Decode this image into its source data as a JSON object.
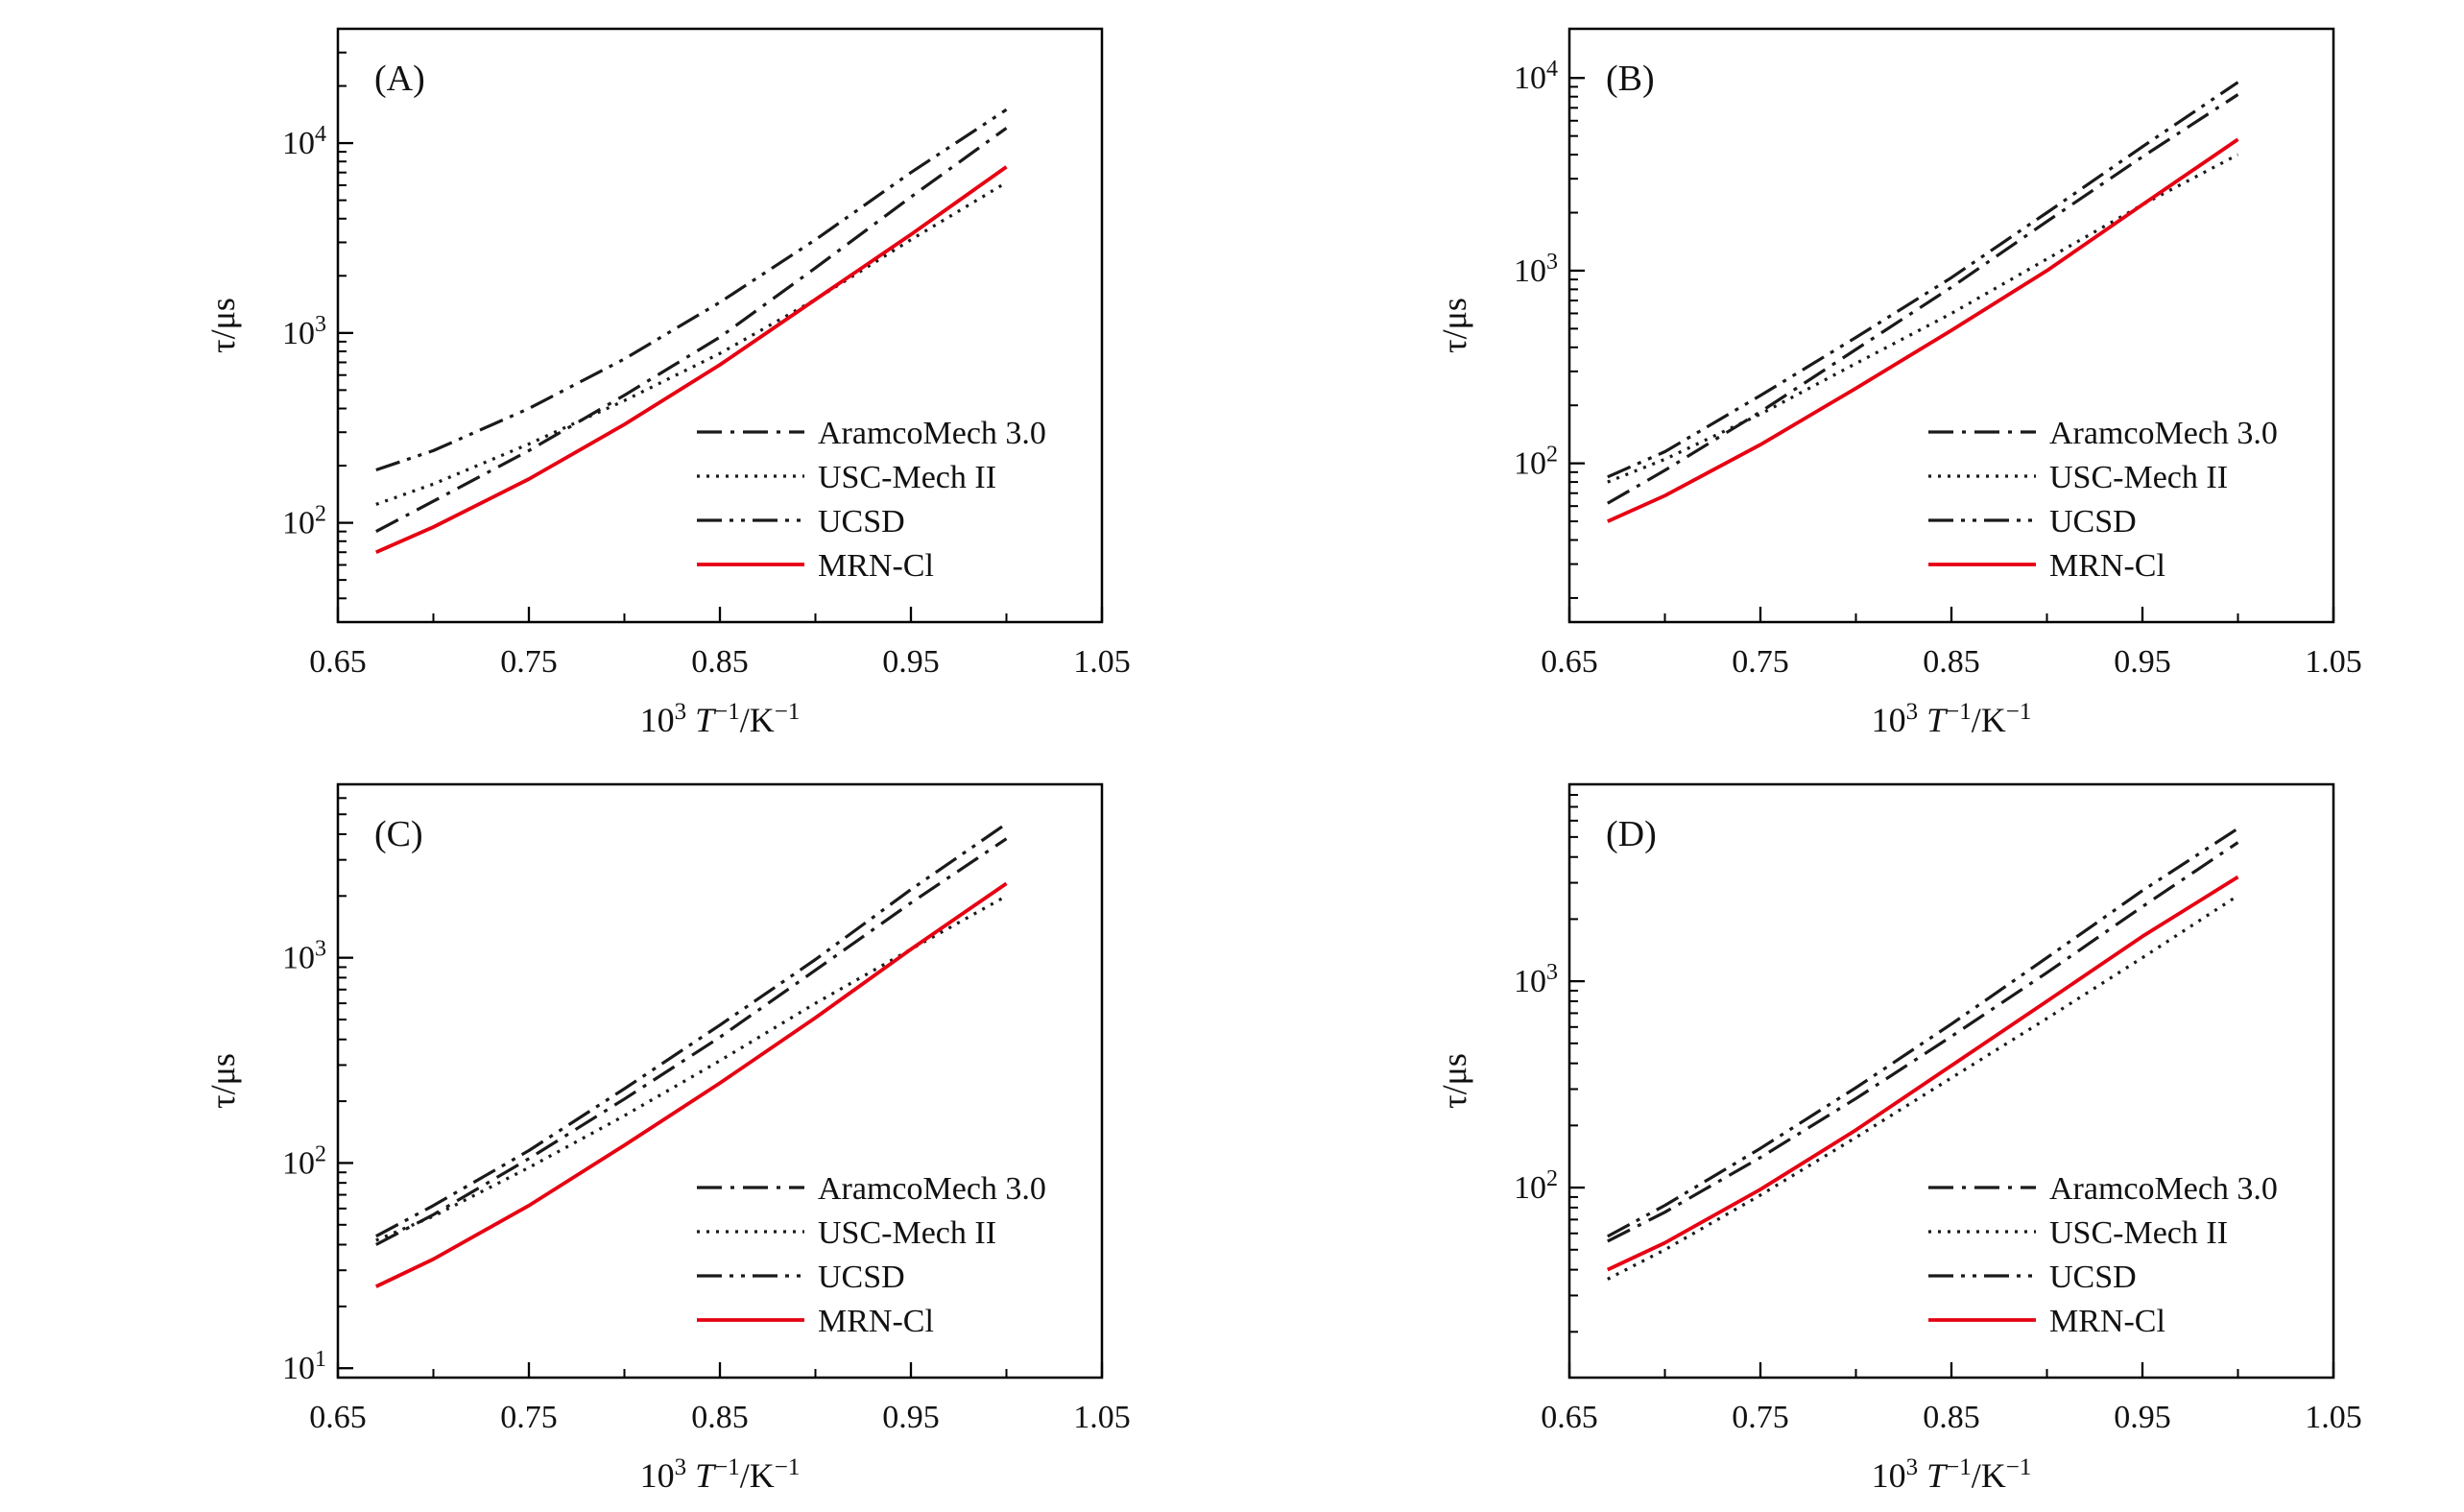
{
  "figure": {
    "background": "#ffffff",
    "black": "#1a1a1a",
    "red": "#e60012"
  },
  "chart_data": [
    {
      "type": "line",
      "yscale": "log",
      "panel_label": "(A)",
      "ylabel": "τ/μs",
      "xlabel_text": "10³ T⁻¹/K⁻¹",
      "xlabel_parts": [
        {
          "t": "10"
        },
        {
          "t": "3",
          "sup": true
        },
        {
          "t": " "
        },
        {
          "t": "T",
          "italic": true
        },
        {
          "t": "−1",
          "sup": true
        },
        {
          "t": "/K"
        },
        {
          "t": "−1",
          "sup": true
        }
      ],
      "xlim": [
        0.65,
        1.05
      ],
      "xticks": [
        0.65,
        0.75,
        0.85,
        0.95,
        1.05
      ],
      "xtick_labels": [
        "0.65",
        "0.75",
        "0.85",
        "0.95",
        "1.05"
      ],
      "xminor": [
        0.7,
        0.8,
        0.9,
        1.0
      ],
      "ylim": [
        30,
        40000
      ],
      "yticks": [
        100,
        1000,
        10000
      ],
      "ytick_exponents": [
        "2",
        "3",
        "4"
      ],
      "legend_position": "lower right",
      "grid": false,
      "x": [
        0.67,
        0.7,
        0.75,
        0.8,
        0.85,
        0.9,
        0.95,
        1.0
      ],
      "series": [
        {
          "name": "AramcoMech 3.0",
          "color": "#1a1a1a",
          "style": "dash-dot",
          "dash": "26 9 4 9",
          "width": 3.2,
          "values": [
            90,
            130,
            240,
            470,
            950,
            2200,
            5200,
            12000
          ]
        },
        {
          "name": "USC-Mech II",
          "color": "#1a1a1a",
          "style": "dotted",
          "dash": "3 7",
          "width": 3.2,
          "values": [
            125,
            160,
            260,
            440,
            780,
            1500,
            3100,
            6200
          ]
        },
        {
          "name": "UCSD",
          "color": "#1a1a1a",
          "style": "dash-dot-dot",
          "dash": "26 8 4 8 4 8",
          "width": 3.2,
          "values": [
            190,
            240,
            400,
            730,
            1450,
            3100,
            7000,
            15000
          ]
        },
        {
          "name": "MRN-Cl",
          "color": "#e60012",
          "style": "solid",
          "dash": "",
          "width": 3.8,
          "values": [
            70,
            95,
            170,
            330,
            680,
            1500,
            3300,
            7500
          ]
        }
      ]
    },
    {
      "type": "line",
      "yscale": "log",
      "panel_label": "(B)",
      "ylabel": "τ/μs",
      "xlabel_text": "10³ T⁻¹/K⁻¹",
      "xlabel_parts": [
        {
          "t": "10"
        },
        {
          "t": "3",
          "sup": true
        },
        {
          "t": " "
        },
        {
          "t": "T",
          "italic": true
        },
        {
          "t": "−1",
          "sup": true
        },
        {
          "t": "/K"
        },
        {
          "t": "−1",
          "sup": true
        }
      ],
      "xlim": [
        0.65,
        1.05
      ],
      "xticks": [
        0.65,
        0.75,
        0.85,
        0.95,
        1.05
      ],
      "xtick_labels": [
        "0.65",
        "0.75",
        "0.85",
        "0.95",
        "1.05"
      ],
      "xminor": [
        0.7,
        0.8,
        0.9,
        1.0
      ],
      "ylim": [
        15,
        18000
      ],
      "yticks": [
        100,
        1000,
        10000
      ],
      "ytick_exponents": [
        "2",
        "3",
        "4"
      ],
      "legend_position": "lower right",
      "grid": false,
      "x": [
        0.67,
        0.7,
        0.75,
        0.8,
        0.85,
        0.9,
        0.95,
        1.0
      ],
      "series": [
        {
          "name": "AramcoMech 3.0",
          "color": "#1a1a1a",
          "style": "dash-dot",
          "dash": "26 9 4 9",
          "width": 3.2,
          "values": [
            62,
            92,
            185,
            390,
            820,
            1800,
            3900,
            8200
          ]
        },
        {
          "name": "USC-Mech II",
          "color": "#1a1a1a",
          "style": "dotted",
          "dash": "3 7",
          "width": 3.2,
          "values": [
            80,
            105,
            180,
            330,
            600,
            1150,
            2200,
            4000
          ]
        },
        {
          "name": "UCSD",
          "color": "#1a1a1a",
          "style": "dash-dot-dot",
          "dash": "26 8 4 8 4 8",
          "width": 3.2,
          "values": [
            85,
            115,
            225,
            450,
            920,
            2000,
            4400,
            9500
          ]
        },
        {
          "name": "MRN-Cl",
          "color": "#e60012",
          "style": "solid",
          "dash": "",
          "width": 3.8,
          "values": [
            50,
            68,
            125,
            245,
            490,
            1000,
            2200,
            4800
          ]
        }
      ]
    },
    {
      "type": "line",
      "yscale": "log",
      "panel_label": "(C)",
      "ylabel": "τ/μs",
      "xlabel_text": "10³ T⁻¹/K⁻¹",
      "xlabel_parts": [
        {
          "t": "10"
        },
        {
          "t": "3",
          "sup": true
        },
        {
          "t": " "
        },
        {
          "t": "T",
          "italic": true
        },
        {
          "t": "−1",
          "sup": true
        },
        {
          "t": "/K"
        },
        {
          "t": "−1",
          "sup": true
        }
      ],
      "xlim": [
        0.65,
        1.05
      ],
      "xticks": [
        0.65,
        0.75,
        0.85,
        0.95,
        1.05
      ],
      "xtick_labels": [
        "0.65",
        "0.75",
        "0.85",
        "0.95",
        "1.05"
      ],
      "xminor": [
        0.7,
        0.8,
        0.9,
        1.0
      ],
      "ylim": [
        9,
        7000
      ],
      "yticks": [
        10,
        100,
        1000
      ],
      "ytick_exponents": [
        "1",
        "2",
        "3"
      ],
      "legend_position": "lower right",
      "grid": false,
      "x": [
        0.67,
        0.7,
        0.75,
        0.8,
        0.85,
        0.9,
        0.95,
        1.0
      ],
      "series": [
        {
          "name": "AramcoMech 3.0",
          "color": "#1a1a1a",
          "style": "dash-dot",
          "dash": "26 9 4 9",
          "width": 3.2,
          "values": [
            40,
            56,
            105,
            205,
            410,
            870,
            1850,
            3800
          ]
        },
        {
          "name": "USC-Mech II",
          "color": "#1a1a1a",
          "style": "dotted",
          "dash": "3 7",
          "width": 3.2,
          "values": [
            42,
            55,
            95,
            170,
            315,
            600,
            1100,
            2000
          ]
        },
        {
          "name": "UCSD",
          "color": "#1a1a1a",
          "style": "dash-dot-dot",
          "dash": "26 8 4 8 4 8",
          "width": 3.2,
          "values": [
            44,
            62,
            115,
            230,
            470,
            980,
            2150,
            4500
          ]
        },
        {
          "name": "MRN-Cl",
          "color": "#e60012",
          "style": "solid",
          "dash": "",
          "width": 3.8,
          "values": [
            25,
            34,
            62,
            122,
            245,
            510,
            1100,
            2300
          ]
        }
      ]
    },
    {
      "type": "line",
      "yscale": "log",
      "panel_label": "(D)",
      "ylabel": "τ/μs",
      "xlabel_text": "10³ T⁻¹/K⁻¹",
      "xlabel_parts": [
        {
          "t": "10"
        },
        {
          "t": "3",
          "sup": true
        },
        {
          "t": " "
        },
        {
          "t": "T",
          "italic": true
        },
        {
          "t": "−1",
          "sup": true
        },
        {
          "t": "/K"
        },
        {
          "t": "−1",
          "sup": true
        }
      ],
      "xlim": [
        0.65,
        1.05
      ],
      "xticks": [
        0.65,
        0.75,
        0.85,
        0.95,
        1.05
      ],
      "xtick_labels": [
        "0.65",
        "0.75",
        "0.85",
        "0.95",
        "1.05"
      ],
      "xminor": [
        0.7,
        0.8,
        0.9,
        1.0
      ],
      "ylim": [
        12,
        9000
      ],
      "yticks": [
        100,
        1000
      ],
      "ytick_exponents": [
        "2",
        "3"
      ],
      "legend_position": "lower right",
      "grid": false,
      "x": [
        0.67,
        0.7,
        0.75,
        0.8,
        0.85,
        0.9,
        0.95,
        1.0
      ],
      "series": [
        {
          "name": "AramcoMech 3.0",
          "color": "#1a1a1a",
          "style": "dash-dot",
          "dash": "26 9 4 9",
          "width": 3.2,
          "values": [
            55,
            76,
            140,
            270,
            540,
            1100,
            2300,
            4700
          ]
        },
        {
          "name": "USC-Mech II",
          "color": "#1a1a1a",
          "style": "dotted",
          "dash": "3 7",
          "width": 3.2,
          "values": [
            36,
            50,
            92,
            175,
            340,
            660,
            1300,
            2600
          ]
        },
        {
          "name": "UCSD",
          "color": "#1a1a1a",
          "style": "dash-dot-dot",
          "dash": "26 8 4 8 4 8",
          "width": 3.2,
          "values": [
            58,
            82,
            155,
            305,
            620,
            1300,
            2750,
            5500
          ]
        },
        {
          "name": "MRN-Cl",
          "color": "#e60012",
          "style": "solid",
          "dash": "",
          "width": 3.8,
          "values": [
            40,
            54,
            98,
            190,
            390,
            800,
            1650,
            3200
          ]
        }
      ]
    }
  ]
}
